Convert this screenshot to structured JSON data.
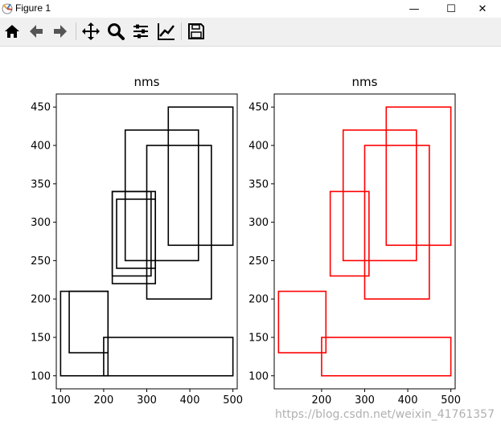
{
  "window": {
    "title": "Figure 1",
    "controls": {
      "minimize": "—",
      "maximize": "☐",
      "close": "✕"
    }
  },
  "toolbar": {
    "tools": [
      {
        "name": "home-icon"
      },
      {
        "name": "back-icon"
      },
      {
        "name": "forward-icon"
      },
      {
        "name": "pan-icon"
      },
      {
        "name": "zoom-icon"
      },
      {
        "name": "subplots-icon"
      },
      {
        "name": "edit-curves-icon"
      },
      {
        "name": "save-icon"
      }
    ]
  },
  "chart_data": [
    {
      "type": "rectangles",
      "title": "nms",
      "xlim": [
        90,
        510
      ],
      "ylim": [
        83,
        467
      ],
      "xticks": [
        100,
        200,
        300,
        400,
        500
      ],
      "yticks": [
        100,
        150,
        200,
        250,
        300,
        350,
        400,
        450
      ],
      "color": "#000000",
      "boxes": [
        [
          100,
          100,
          210,
          210
        ],
        [
          120,
          130,
          210,
          210
        ],
        [
          200,
          100,
          500,
          150
        ],
        [
          220,
          220,
          320,
          340
        ],
        [
          230,
          240,
          320,
          330
        ],
        [
          220,
          230,
          310,
          340
        ],
        [
          250,
          250,
          420,
          420
        ],
        [
          300,
          200,
          450,
          400
        ],
        [
          350,
          270,
          500,
          450
        ]
      ]
    },
    {
      "type": "rectangles",
      "title": "nms",
      "xlim": [
        90,
        510
      ],
      "ylim": [
        83,
        467
      ],
      "xticks": [
        200,
        300,
        400,
        500
      ],
      "yticks": [
        100,
        150,
        200,
        250,
        300,
        350,
        400,
        450
      ],
      "color": "#ff0000",
      "boxes": [
        [
          100,
          130,
          210,
          210
        ],
        [
          200,
          100,
          500,
          150
        ],
        [
          220,
          230,
          310,
          340
        ],
        [
          250,
          250,
          420,
          420
        ],
        [
          300,
          200,
          450,
          400
        ],
        [
          350,
          270,
          500,
          450
        ]
      ]
    }
  ],
  "watermark": "https://blog.csdn.net/weixin_41761357"
}
